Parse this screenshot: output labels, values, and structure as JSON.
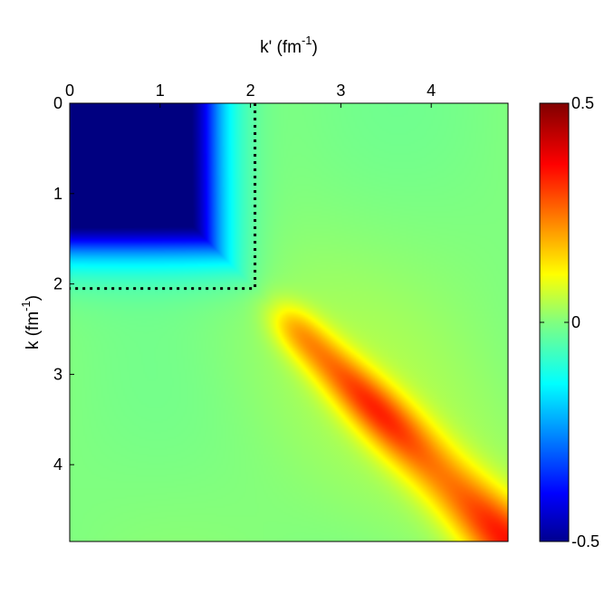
{
  "chart_data": {
    "type": "heatmap",
    "title": "",
    "xlabel": {
      "base": "k' (fm",
      "sup": "-1",
      "close": ")"
    },
    "ylabel": {
      "base": "k (fm",
      "sup": "-1",
      "close": ")"
    },
    "x_range": [
      0,
      4.85
    ],
    "y_range": [
      0,
      4.85
    ],
    "x_axis_position": "top",
    "y_reversed": true,
    "x_ticks": [
      0,
      1,
      2,
      3,
      4
    ],
    "y_ticks": [
      0,
      1,
      2,
      3,
      4
    ],
    "x_tick_labels": [
      "0",
      "1",
      "2",
      "3",
      "4"
    ],
    "y_tick_labels": [
      "0",
      "1",
      "2",
      "3",
      "4"
    ],
    "colorbar": {
      "min": -0.5,
      "max": 0.5,
      "ticks": [
        0.5,
        0,
        -0.5
      ],
      "tick_labels": [
        "0.5",
        "0",
        "-0.5"
      ],
      "colormap": "jet",
      "location": "right"
    },
    "grid": false,
    "annotations": [
      {
        "type": "dotted-box",
        "x_range": [
          0,
          2.05
        ],
        "y_range": [
          0,
          2.05
        ],
        "color": "#000000"
      }
    ],
    "field_description": {
      "background": 0.0,
      "low_momentum_block": {
        "k_range": [
          0,
          1.6
        ],
        "kp_range": [
          0,
          1.6
        ],
        "value": -0.5
      },
      "diagonal_ridge": {
        "start": 2.3,
        "end": 4.85,
        "peak_value": 0.3
      }
    }
  }
}
